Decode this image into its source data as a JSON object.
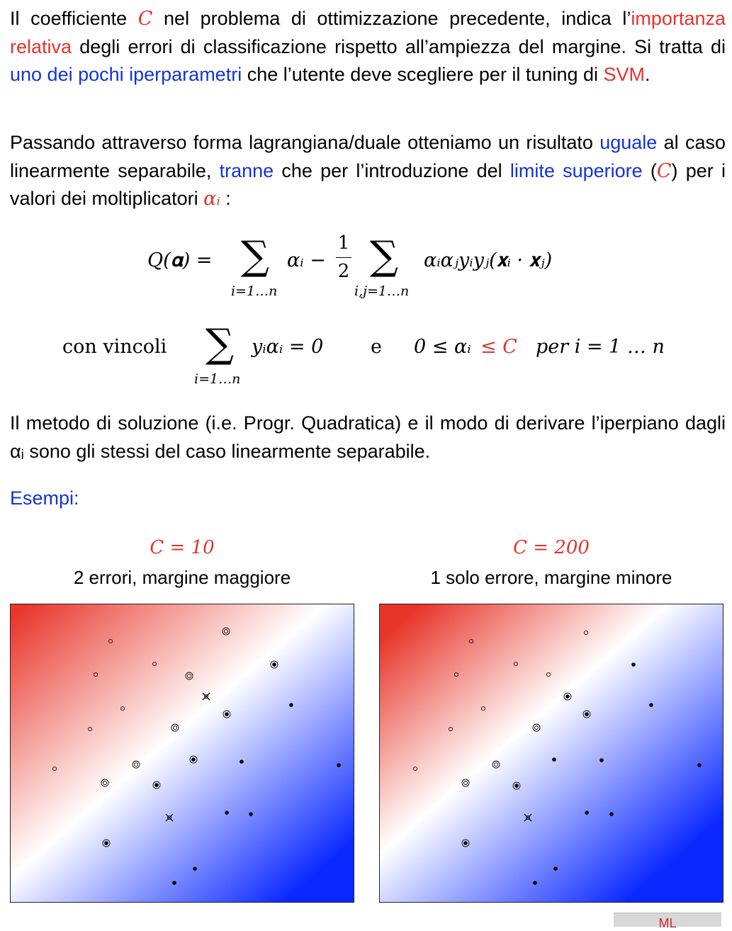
{
  "para1": {
    "s1": "Il coefficiente ",
    "c": "C",
    "s2": " nel problema di ottimizzazione precedente, indica l’",
    "importanza": "importanza relativa",
    "s3": " degli errori di classificazione rispetto all’ampiezza del margine. Si tratta di ",
    "iper": "uno dei pochi iperparametri",
    "s4": " che l’utente deve scegliere per il tuning di ",
    "svm": "SVM",
    "s5": "."
  },
  "para2": {
    "s1": "Passando attraverso forma lagrangiana/duale otteniamo un risultato ",
    "uguale": "uguale",
    "s2": " al caso linearmente separabile, ",
    "tranne": "tranne",
    "s3": " che per l’introduzione del ",
    "limite": "limite superiore",
    "s4": " (",
    "c": "C",
    "s5": ") per i valori dei moltiplicatori ",
    "alpha": "αᵢ",
    "s6": " :"
  },
  "equation": {
    "lhs": "Q(𝛂) =",
    "sum1_sub": "i=1…n",
    "alpha_i": "αᵢ −",
    "frac_num": "1",
    "frac_den": "2",
    "sum2_sub": "i,j=1…n",
    "term": "αᵢαⱼyᵢyⱼ(𝐱ᵢ · 𝐱ⱼ)"
  },
  "constraints": {
    "label": "con vincoli",
    "sum_sub": "i=1…n",
    "eq1": "yᵢαᵢ = 0",
    "and": "e",
    "ineq_left": "0 ≤ αᵢ",
    "ineq_red": "≤ C",
    "ineq_right": "per i = 1 … n"
  },
  "para3": "Il metodo di soluzione (i.e. Progr. Quadratica) e il modo di derivare l’iperpiano dagli αᵢ sono gli stessi del caso linearmente separabile.",
  "examples_title": "Esempi:",
  "examples": [
    {
      "c_label": "C = 10",
      "caption": "2 errori, margine maggiore"
    },
    {
      "c_label": "C = 200",
      "caption": "1 solo errore, margine minore"
    }
  ],
  "footer_tag": "ML",
  "colors": {
    "red": "#e5322d",
    "blue": "#1432d8",
    "class_pos": "#e53a2a",
    "class_neg": "#0020ff"
  }
}
